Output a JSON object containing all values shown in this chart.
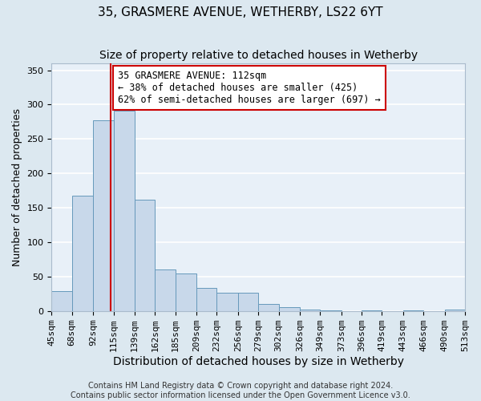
{
  "title": "35, GRASMERE AVENUE, WETHERBY, LS22 6YT",
  "subtitle": "Size of property relative to detached houses in Wetherby",
  "xlabel": "Distribution of detached houses by size in Wetherby",
  "ylabel": "Number of detached properties",
  "bar_edges": [
    45,
    68,
    92,
    115,
    139,
    162,
    185,
    209,
    232,
    256,
    279,
    302,
    326,
    349,
    373,
    396,
    419,
    443,
    466,
    490,
    513
  ],
  "bar_heights": [
    29,
    168,
    277,
    291,
    162,
    60,
    54,
    33,
    26,
    26,
    10,
    5,
    2,
    1,
    0,
    1,
    0,
    1,
    0,
    2
  ],
  "bar_color": "#c8d8ea",
  "bar_edgecolor": "#6699bb",
  "property_size": 112,
  "vline_color": "#cc0000",
  "annotation_text": "35 GRASMERE AVENUE: 112sqm\n← 38% of detached houses are smaller (425)\n62% of semi-detached houses are larger (697) →",
  "annotation_box_edgecolor": "#cc0000",
  "annotation_box_facecolor": "#ffffff",
  "yticks": [
    0,
    50,
    100,
    150,
    200,
    250,
    300,
    350
  ],
  "ylim": [
    0,
    360
  ],
  "footer_line1": "Contains HM Land Registry data © Crown copyright and database right 2024.",
  "footer_line2": "Contains public sector information licensed under the Open Government Licence v3.0.",
  "background_color": "#dce8f0",
  "plot_background_color": "#e8f0f8",
  "grid_color": "#ffffff",
  "title_fontsize": 11,
  "subtitle_fontsize": 10,
  "xlabel_fontsize": 10,
  "ylabel_fontsize": 9,
  "tick_fontsize": 8,
  "annotation_fontsize": 8.5,
  "footer_fontsize": 7
}
